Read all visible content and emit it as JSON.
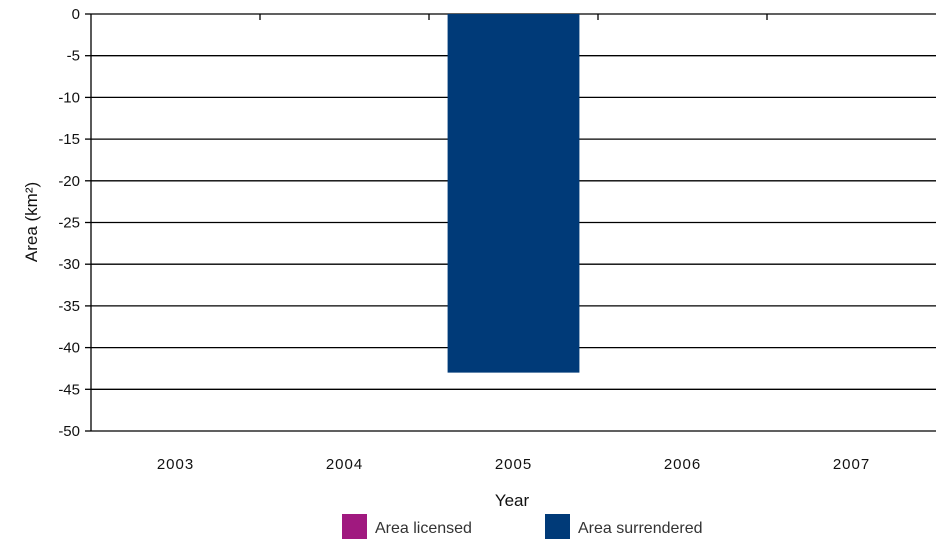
{
  "chart_data": {
    "type": "bar",
    "categories": [
      "2003",
      "2004",
      "2005",
      "2006",
      "2007"
    ],
    "series": [
      {
        "name": "Area licensed",
        "values": [
          0,
          0,
          0,
          0,
          0
        ],
        "color": "#a0197f"
      },
      {
        "name": "Area surrendered",
        "values": [
          0,
          0,
          -43,
          0,
          0
        ],
        "color": "#003a78"
      }
    ],
    "ylabel": "Area (km²)",
    "xlabel": "Year",
    "ylim": [
      -50,
      0
    ],
    "yticks": [
      0,
      -5,
      -10,
      -15,
      -20,
      -25,
      -30,
      -35,
      -40,
      -45,
      -50
    ],
    "ytick_labels": [
      "0",
      "-5",
      "-10",
      "-15",
      "-20",
      "-25",
      "-30",
      "-35",
      "-40",
      "-45",
      "-50"
    ],
    "grid": true,
    "legend": "bottom"
  }
}
